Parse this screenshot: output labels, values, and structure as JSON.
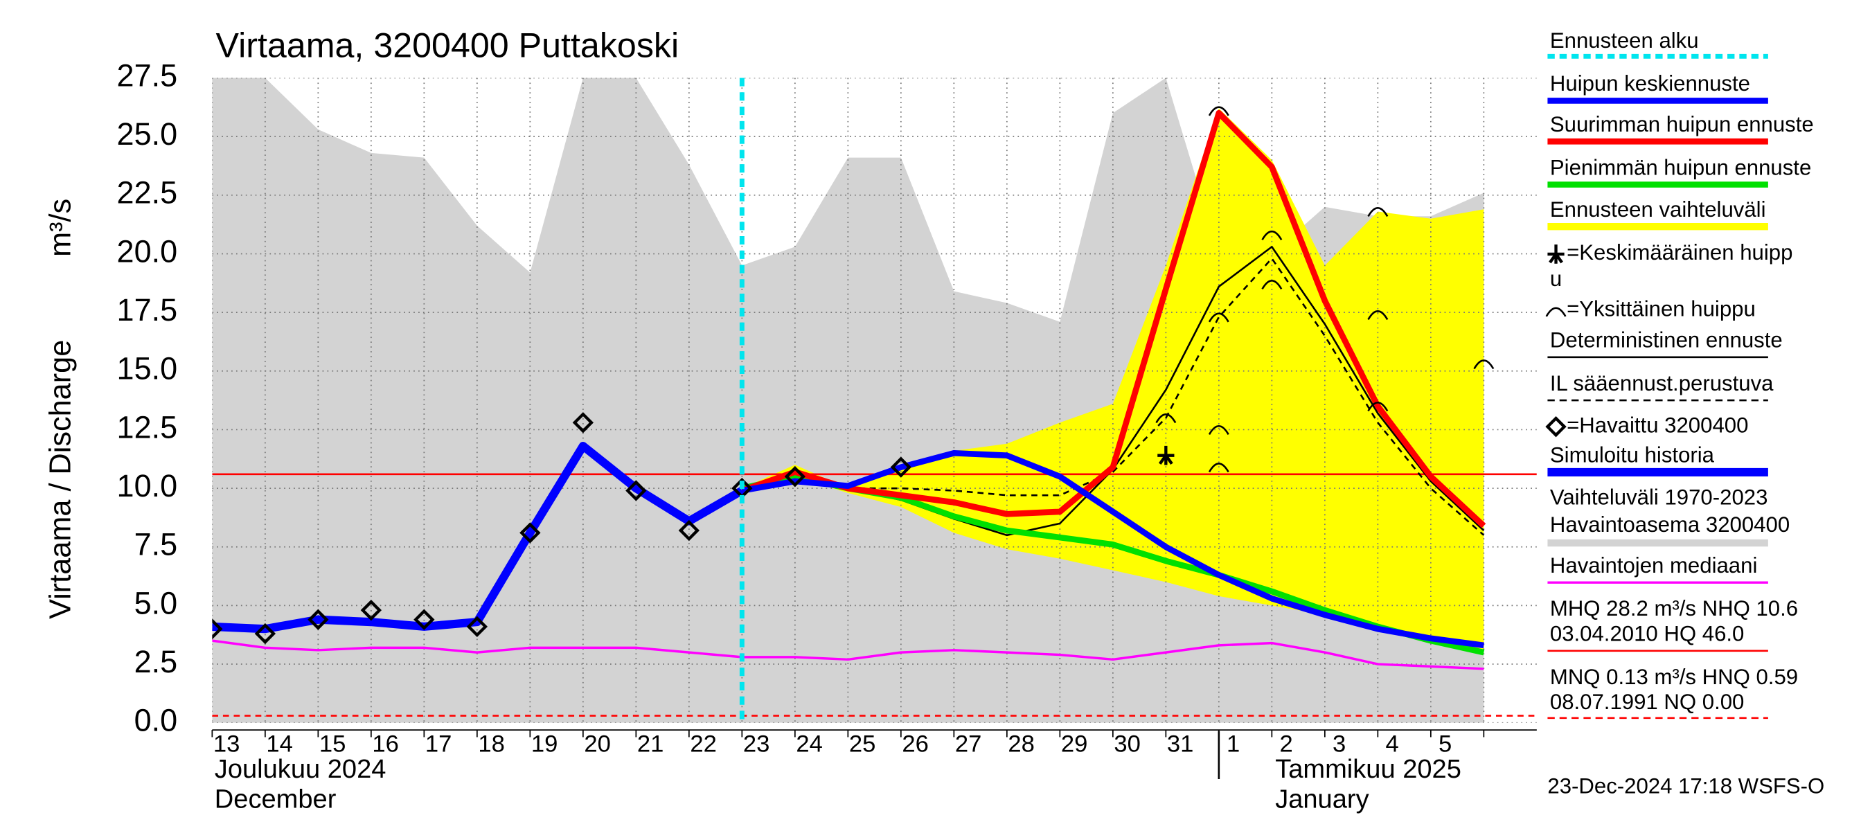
{
  "chart_data": {
    "type": "line",
    "title": "Virtaama, 3200400 Puttakoski",
    "y_label": "Virtaama / Discharge",
    "y_unit": "m³/s",
    "categories": [
      "13",
      "14",
      "15",
      "16",
      "17",
      "18",
      "19",
      "20",
      "21",
      "22",
      "23",
      "24",
      "25",
      "26",
      "27",
      "28",
      "29",
      "30",
      "31",
      "1",
      "2",
      "3",
      "4",
      "5",
      null
    ],
    "months": [
      {
        "at": 0,
        "label": "Joulukuu  2024",
        "label2": "December"
      },
      {
        "at": 19,
        "label": "Tammikuu  2025",
        "label2": "January"
      }
    ],
    "ylim": [
      0,
      27.5
    ],
    "yticks": [
      {
        "value": 0,
        "label": "0.0"
      },
      2.5,
      {
        "value": 5,
        "label": "5.0"
      },
      7.5,
      {
        "value": 10,
        "label": "10.0"
      },
      12.5,
      {
        "value": 15,
        "label": "15.0"
      },
      17.5,
      {
        "value": 20,
        "label": "20.0"
      },
      22.5,
      {
        "value": 25,
        "label": "25.0"
      },
      27.5
    ],
    "grid": true,
    "forecast_start": {
      "label": "Ennusteen alku",
      "at": 10,
      "color": "#00e5ee"
    },
    "bands": [
      {
        "name": "Vaihteluväli 1970-2023",
        "name2": " Havaintoasema 3200400",
        "color": "#d3d3d3",
        "values": [
          27.5,
          27.5,
          25.3,
          24.3,
          24.1,
          21.2,
          19.2,
          27.5,
          27.5,
          23.8,
          19.5,
          20.3,
          24.1,
          24.1,
          18.4,
          17.9,
          17.1,
          26.0,
          27.5,
          20.0,
          20.0,
          22.0,
          21.6,
          21.6,
          22.6
        ]
      },
      {
        "name": "Ennusteen vaihteluväli",
        "color": "#ffff00",
        "values": [
          null,
          null,
          null,
          null,
          null,
          null,
          null,
          null,
          null,
          null,
          10.0,
          11.0,
          10.0,
          10.9,
          11.6,
          11.9,
          12.8,
          13.6,
          19.5,
          26.2,
          24.0,
          19.5,
          21.8,
          21.5,
          21.9
        ],
        "lower": [
          null,
          null,
          null,
          null,
          null,
          null,
          null,
          null,
          null,
          null,
          10.0,
          10.5,
          9.8,
          9.2,
          8.1,
          7.4,
          7.0,
          6.5,
          6.0,
          5.4,
          5.0,
          4.6,
          4.1,
          3.6,
          3.0
        ]
      }
    ],
    "series": [
      {
        "name": "Havaintojen mediaani",
        "color": "#ff00ff",
        "width": 2,
        "values": [
          3.5,
          3.2,
          3.1,
          3.2,
          3.2,
          3.0,
          3.2,
          3.2,
          3.2,
          3.0,
          2.8,
          2.8,
          2.7,
          3.0,
          3.1,
          3.0,
          2.9,
          2.7,
          3.0,
          3.3,
          3.4,
          3.0,
          2.5,
          2.4,
          2.3
        ]
      },
      {
        "name": "Deterministinen ennuste",
        "color": "#000000",
        "width": 1.5,
        "values": [
          null,
          null,
          null,
          null,
          null,
          null,
          null,
          null,
          null,
          null,
          10.0,
          10.5,
          10.0,
          9.5,
          8.7,
          8.0,
          8.5,
          10.8,
          14.2,
          18.6,
          20.3,
          17.0,
          13.2,
          10.3,
          8.2
        ]
      },
      {
        "name": "IL sääennust.perustuva",
        "color": "#000000",
        "width": 1.5,
        "dash": true,
        "values": [
          null,
          null,
          null,
          null,
          null,
          null,
          null,
          null,
          null,
          null,
          10.0,
          10.4,
          10.0,
          10.0,
          9.9,
          9.7,
          9.7,
          10.7,
          13.0,
          17.3,
          19.8,
          16.5,
          12.8,
          10.0,
          8.0
        ]
      },
      {
        "name": "Pienimmän huipun ennuste",
        "color": "#00e000",
        "width": 5,
        "values": [
          null,
          null,
          null,
          null,
          null,
          null,
          null,
          null,
          null,
          null,
          10.0,
          10.5,
          10.0,
          9.6,
          8.8,
          8.2,
          7.9,
          7.6,
          6.9,
          6.3,
          5.6,
          4.8,
          4.1,
          3.5,
          3.0
        ]
      },
      {
        "name": "Suurimman huipun ennuste",
        "color": "#ff0000",
        "width": 5,
        "values": [
          null,
          null,
          null,
          null,
          null,
          null,
          null,
          null,
          null,
          null,
          9.9,
          10.7,
          10.0,
          9.7,
          9.4,
          8.9,
          9.0,
          10.9,
          18.5,
          26.0,
          23.7,
          18.0,
          13.5,
          10.5,
          8.4
        ]
      },
      {
        "name": "Huipun keskiennuste",
        "color": "#0000ff",
        "width": 5,
        "values": [
          null,
          null,
          null,
          null,
          null,
          null,
          null,
          null,
          null,
          null,
          9.9,
          10.3,
          10.1,
          10.9,
          11.5,
          11.4,
          10.5,
          9.0,
          7.5,
          6.3,
          5.3,
          4.6,
          4.0,
          3.6,
          3.3
        ]
      },
      {
        "name": "Simuloitu historia",
        "color": "#0000ff",
        "width": 7,
        "values": [
          4.1,
          4.0,
          4.4,
          4.3,
          4.1,
          4.3,
          8.1,
          11.8,
          10.0,
          8.6,
          9.9,
          null,
          null,
          null,
          null,
          null,
          null,
          null,
          null,
          null,
          null,
          null,
          null,
          null,
          null
        ]
      }
    ],
    "observed": {
      "name": "=Havaittu 3200400",
      "values": [
        4.0,
        3.8,
        4.4,
        4.8,
        4.4,
        4.1,
        8.1,
        12.8,
        9.9,
        8.2,
        10.0,
        10.5,
        null,
        10.9,
        null,
        null,
        null,
        null,
        null,
        null,
        null,
        null,
        null,
        null,
        null
      ]
    },
    "mean_peak": {
      "name": "=Keskimääräinen huipp",
      "name2": "u",
      "x": 18,
      "y": 11.4
    },
    "single_peaks": {
      "name": "=Yksittäinen huippu",
      "x": [
        19,
        20,
        20,
        19,
        18,
        19,
        19,
        22,
        22,
        22,
        24
      ],
      "y": [
        26.1,
        20.8,
        18.7,
        17.3,
        13.0,
        12.5,
        10.9,
        21.8,
        17.4,
        13.5,
        15.3
      ]
    },
    "hlines": [
      {
        "value": 10.6,
        "color": "#ff0000"
      },
      {
        "value": 0.3,
        "color": "#ff0000",
        "dash": true
      }
    ],
    "info": [
      "MHQ 28.2 m³/s NHQ 10.6",
      "03.04.2010 HQ 46.0",
      "MNQ 0.13 m³/s HNQ 0.59",
      "08.07.1991 NQ 0.00"
    ],
    "timestamp": "23-Dec-2024 17:18 WSFS-O"
  }
}
